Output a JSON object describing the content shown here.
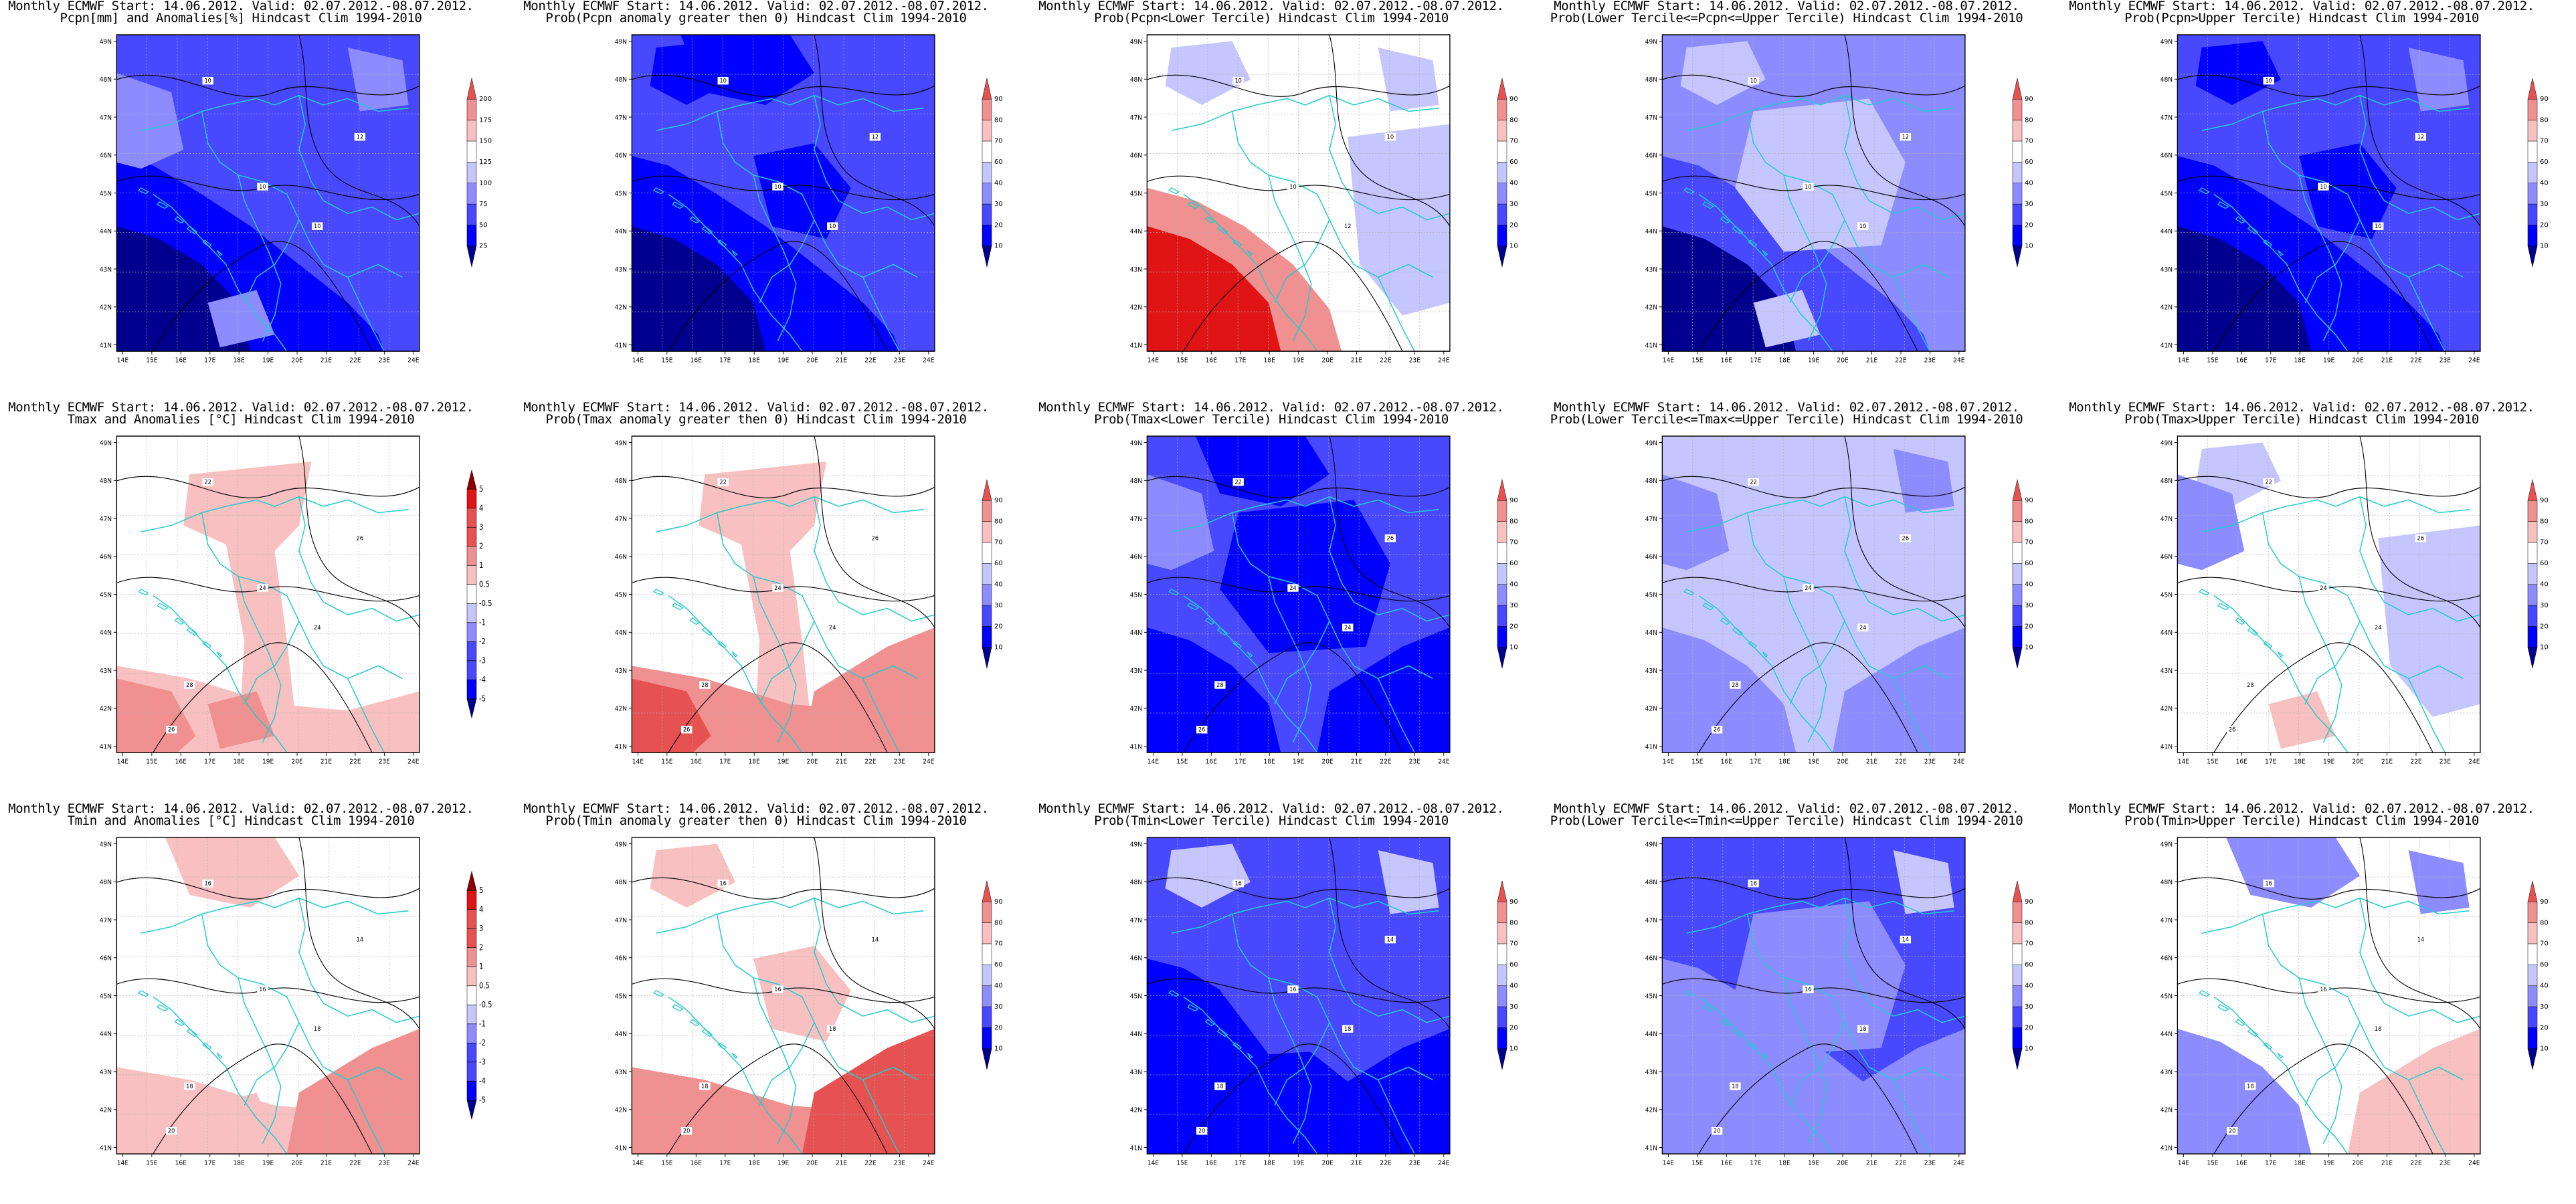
{
  "header_line": "Monthly ECMWF Start: 14.06.2012. Valid: 02.07.2012.-08.07.2012.",
  "lat_labels": [
    "41N",
    "42N",
    "43N",
    "44N",
    "45N",
    "46N",
    "47N",
    "48N",
    "49N"
  ],
  "lon_labels": [
    "14E",
    "15E",
    "16E",
    "17E",
    "18E",
    "19E",
    "20E",
    "21E",
    "22E",
    "23E",
    "24E"
  ],
  "colors": {
    "dark_blue": "#00008e",
    "blue_1": "#0000ff",
    "blue_2": "#4848ff",
    "blue_3": "#8c8cff",
    "blue_4": "#c6c6ff",
    "white": "#ffffff",
    "red_4": "#f8c0c0",
    "red_3": "#f09090",
    "red_2": "#e65252",
    "red_1": "#e01414",
    "dark_red": "#8e0000",
    "contour": "#000000",
    "borders": "#22cccc"
  },
  "panels": [
    {
      "id": "p1",
      "subtitle": "Pcpn[mm] and Anomalies[%] Hindcast Clim 1994-2010",
      "colorbar": [
        "25",
        "50",
        "75",
        "100",
        "125",
        "150",
        "175",
        "200"
      ],
      "base": "blue_2",
      "contour_labels": [
        "10",
        "10",
        "10",
        "12"
      ]
    },
    {
      "id": "p2",
      "subtitle": "Prob(Pcpn anomaly greater then 0) Hindcast Clim 1994-2010",
      "colorbar": [
        "10",
        "20",
        "30",
        "40",
        "60",
        "70",
        "80",
        "90"
      ],
      "base": "blue_2",
      "contour_labels": [
        "10",
        "10",
        "10",
        "12"
      ]
    },
    {
      "id": "p3",
      "subtitle": "Prob(Pcpn<Lower Tercile) Hindcast Clim 1994-2010",
      "colorbar": [
        "10",
        "20",
        "30",
        "40",
        "60",
        "70",
        "80",
        "90"
      ],
      "base": "white",
      "contour_labels": [
        "10",
        "10",
        "12",
        "10"
      ]
    },
    {
      "id": "p4",
      "subtitle": "Prob(Lower Tercile<=Pcpn<=Upper Tercile) Hindcast Clim 1994-2010",
      "colorbar": [
        "10",
        "20",
        "30",
        "40",
        "60",
        "70",
        "80",
        "90"
      ],
      "base": "blue_3",
      "contour_labels": [
        "10",
        "10",
        "10",
        "12"
      ]
    },
    {
      "id": "p5",
      "subtitle": "Prob(Pcpn>Upper Tercile) Hindcast Clim 1994-2010",
      "colorbar": [
        "10",
        "20",
        "30",
        "40",
        "60",
        "70",
        "80",
        "90"
      ],
      "base": "blue_2",
      "contour_labels": [
        "10",
        "10",
        "10",
        "12"
      ]
    },
    {
      "id": "p6",
      "subtitle": "Tmax and Anomalies [°C] Hindcast Clim 1994-2010",
      "colorbar": [
        "-5",
        "-4",
        "-3",
        "-2",
        "-1",
        "-0.5",
        "0.5",
        "1",
        "2",
        "3",
        "4",
        "5"
      ],
      "base": "white",
      "contour_labels": [
        "22",
        "24",
        "24",
        "26",
        "28",
        "26"
      ]
    },
    {
      "id": "p7",
      "subtitle": "Prob(Tmax anomaly greater then 0) Hindcast Clim 1994-2010",
      "colorbar": [
        "10",
        "20",
        "30",
        "40",
        "60",
        "70",
        "80",
        "90"
      ],
      "base": "white",
      "contour_labels": [
        "22",
        "24",
        "24",
        "26",
        "28",
        "26"
      ]
    },
    {
      "id": "p8",
      "subtitle": "Prob(Tmax<Lower Tercile) Hindcast Clim 1994-2010",
      "colorbar": [
        "10",
        "20",
        "30",
        "40",
        "60",
        "70",
        "80",
        "90"
      ],
      "base": "blue_2",
      "contour_labels": [
        "22",
        "24",
        "24",
        "26",
        "28",
        "26"
      ]
    },
    {
      "id": "p9",
      "subtitle": "Prob(Lower Tercile<=Tmax<=Upper Tercile) Hindcast Clim 1994-2010",
      "colorbar": [
        "10",
        "20",
        "30",
        "40",
        "60",
        "70",
        "80",
        "90"
      ],
      "base": "blue_4",
      "contour_labels": [
        "22",
        "24",
        "24",
        "26",
        "28",
        "26"
      ]
    },
    {
      "id": "p10",
      "subtitle": "Prob(Tmax>Upper Tercile) Hindcast Clim 1994-2010",
      "colorbar": [
        "10",
        "20",
        "30",
        "40",
        "60",
        "70",
        "80",
        "90"
      ],
      "base": "white",
      "contour_labels": [
        "22",
        "24",
        "24",
        "26",
        "28",
        "26"
      ]
    },
    {
      "id": "p11",
      "subtitle": "Tmin and Anomalies [°C] Hindcast Clim 1994-2010",
      "colorbar": [
        "-5",
        "-4",
        "-3",
        "-2",
        "-1",
        "-0.5",
        "0.5",
        "1",
        "2",
        "3",
        "4",
        "5"
      ],
      "base": "white",
      "contour_labels": [
        "16",
        "16",
        "18",
        "14",
        "18",
        "20"
      ]
    },
    {
      "id": "p12",
      "subtitle": "Prob(Tmin anomaly greater then 0) Hindcast Clim 1994-2010",
      "colorbar": [
        "10",
        "20",
        "30",
        "40",
        "60",
        "70",
        "80",
        "90"
      ],
      "base": "white",
      "contour_labels": [
        "16",
        "16",
        "18",
        "14",
        "18",
        "20"
      ]
    },
    {
      "id": "p13",
      "subtitle": "Prob(Tmin<Lower Tercile) Hindcast Clim 1994-2010",
      "colorbar": [
        "10",
        "20",
        "30",
        "40",
        "60",
        "70",
        "80",
        "90"
      ],
      "base": "blue_2",
      "contour_labels": [
        "16",
        "16",
        "18",
        "14",
        "18",
        "20"
      ]
    },
    {
      "id": "p14",
      "subtitle": "Prob(Lower Tercile<=Tmin<=Upper Tercile) Hindcast Clim 1994-2010",
      "colorbar": [
        "10",
        "20",
        "30",
        "40",
        "60",
        "70",
        "80",
        "90"
      ],
      "base": "blue_2",
      "contour_labels": [
        "16",
        "16",
        "18",
        "14",
        "18",
        "20"
      ]
    },
    {
      "id": "p15",
      "subtitle": "Prob(Tmin>Upper Tercile) Hindcast Clim 1994-2010",
      "colorbar": [
        "10",
        "20",
        "30",
        "40",
        "60",
        "70",
        "80",
        "90"
      ],
      "base": "white",
      "contour_labels": [
        "16",
        "16",
        "18",
        "14",
        "18",
        "20"
      ]
    }
  ]
}
